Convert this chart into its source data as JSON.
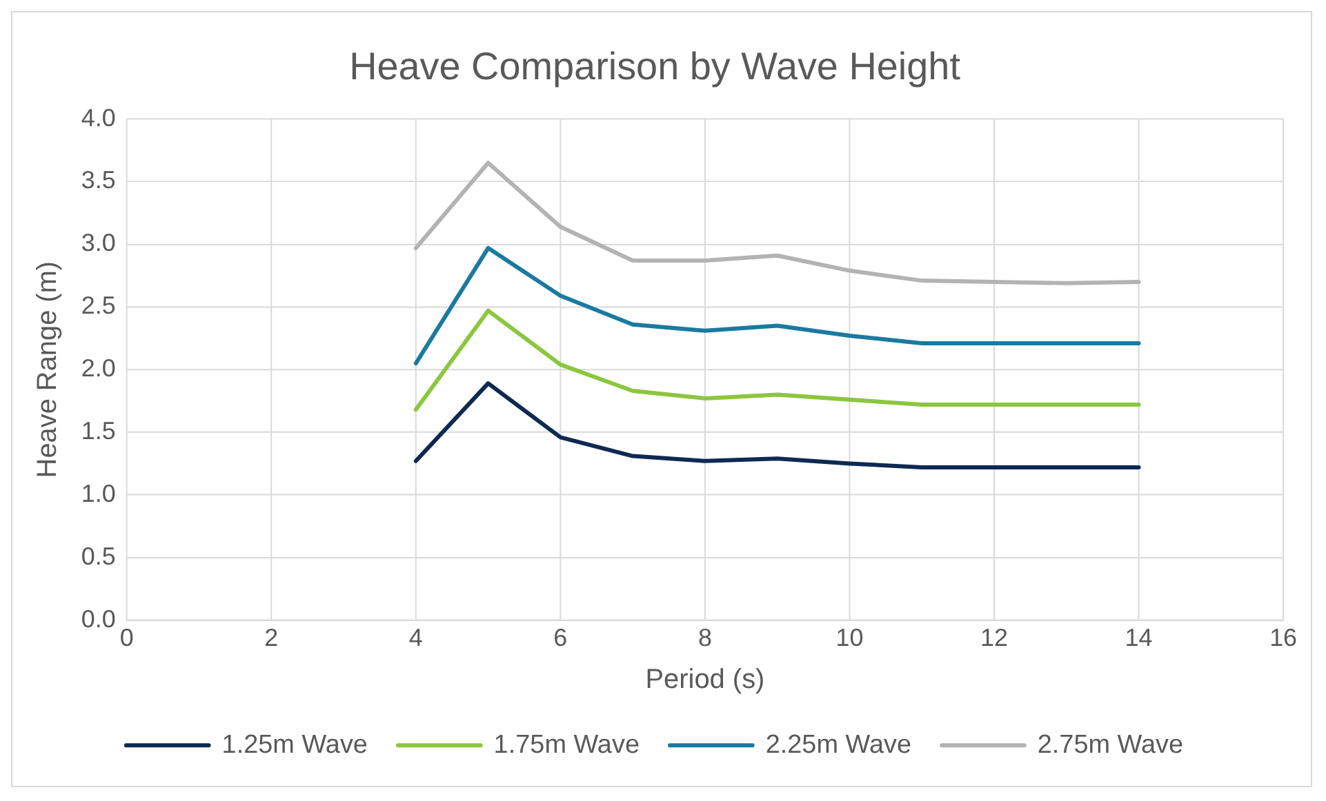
{
  "chart_data": {
    "type": "line",
    "title": "Heave Comparison by Wave Height",
    "xlabel": "Period (s)",
    "ylabel": "Heave Range (m)",
    "x": [
      4,
      5,
      6,
      7,
      8,
      9,
      10,
      11,
      12,
      13,
      14
    ],
    "series": [
      {
        "name": "1.25m Wave",
        "color": "#0e2a52",
        "values": [
          1.27,
          1.89,
          1.46,
          1.31,
          1.27,
          1.29,
          1.25,
          1.22,
          1.22,
          1.22,
          1.22
        ]
      },
      {
        "name": "1.75m Wave",
        "color": "#8cc63e",
        "values": [
          1.68,
          2.47,
          2.04,
          1.83,
          1.77,
          1.8,
          1.76,
          1.72,
          1.72,
          1.72,
          1.72
        ]
      },
      {
        "name": "2.25m Wave",
        "color": "#1a7aa0",
        "values": [
          2.05,
          2.97,
          2.59,
          2.36,
          2.31,
          2.35,
          2.27,
          2.21,
          2.21,
          2.21,
          2.21
        ]
      },
      {
        "name": "2.75m Wave",
        "color": "#b3b3b3",
        "values": [
          2.97,
          3.65,
          3.14,
          2.87,
          2.87,
          2.91,
          2.79,
          2.71,
          2.7,
          2.69,
          2.7
        ]
      }
    ],
    "xlim": [
      0,
      16
    ],
    "xticks": [
      0,
      2,
      4,
      6,
      8,
      10,
      12,
      14,
      16
    ],
    "ylim": [
      0,
      4
    ],
    "yticks": [
      {
        "value": 0,
        "label": "0.0"
      },
      {
        "value": 0.5,
        "label": "0.5"
      },
      {
        "value": 1,
        "label": "1.0"
      },
      {
        "value": 1.5,
        "label": "1.5"
      },
      {
        "value": 2,
        "label": "2.0"
      },
      {
        "value": 2.5,
        "label": "2.5"
      },
      {
        "value": 3,
        "label": "3.0"
      },
      {
        "value": 3.5,
        "label": "3.5"
      },
      {
        "value": 4,
        "label": "4.0"
      }
    ],
    "grid": true,
    "legend": "bottom",
    "marker": "none",
    "line_style": "solid"
  }
}
